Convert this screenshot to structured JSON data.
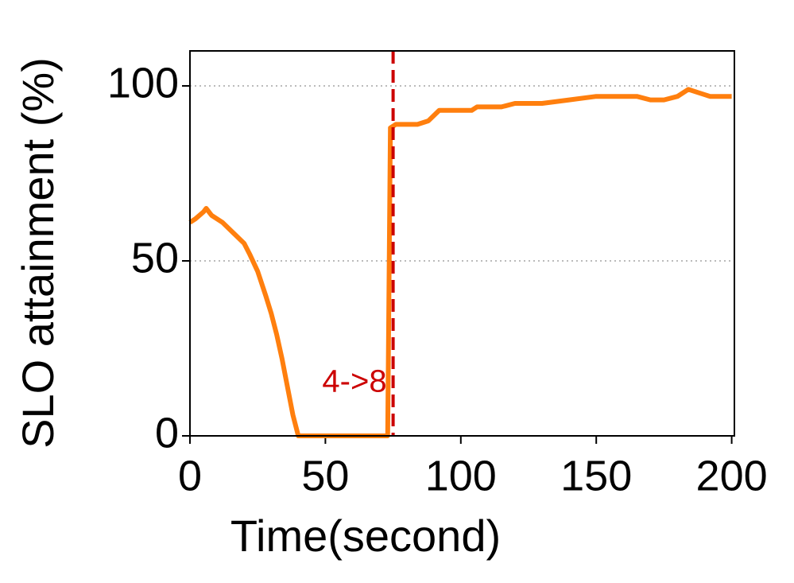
{
  "chart_data": {
    "type": "line",
    "xlabel": "Time(second)",
    "ylabel": "SLO attainment (%)",
    "xlim": [
      0,
      201
    ],
    "ylim": [
      0,
      110
    ],
    "xticks": [
      0,
      50,
      100,
      150,
      200
    ],
    "yticks": [
      0,
      50,
      100
    ],
    "grid": true,
    "series": [
      {
        "name": "SLO attainment",
        "color": "#ff7f0e",
        "x": [
          0,
          2,
          5,
          6,
          8,
          12,
          16,
          20,
          22,
          25,
          28,
          30,
          32,
          34,
          36,
          38,
          40,
          45,
          50,
          60,
          70,
          73,
          74,
          76,
          80,
          84,
          88,
          92,
          100,
          104,
          106,
          115,
          120,
          130,
          140,
          150,
          160,
          165,
          170,
          175,
          180,
          184,
          188,
          192,
          200
        ],
        "values": [
          61,
          62,
          64,
          65,
          63,
          61,
          58,
          55,
          52,
          47,
          40,
          35,
          29,
          22,
          14,
          6,
          0,
          0,
          0,
          0,
          0,
          0,
          88,
          89,
          89,
          89,
          90,
          93,
          93,
          93,
          94,
          94,
          95,
          95,
          96,
          97,
          97,
          97,
          96,
          96,
          97,
          99,
          98,
          97,
          97
        ]
      }
    ],
    "vline": {
      "x": 75,
      "color": "#cc0000",
      "label": "4->8"
    }
  }
}
